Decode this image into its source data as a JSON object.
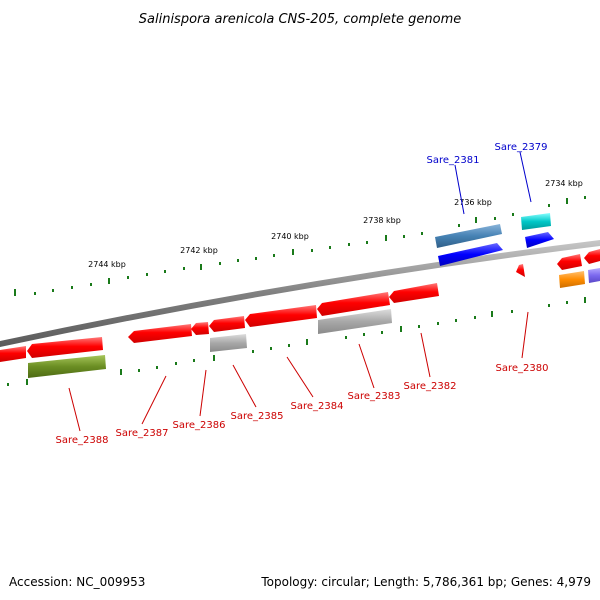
{
  "title": "Salinispora arenicola CNS-205, complete genome",
  "footer": {
    "accession": "Accession: NC_009953",
    "summary": "Topology: circular; Length: 5,786,361 bp; Genes: 4,979"
  },
  "ticks": [
    "2744 kbp",
    "2742 kbp",
    "2740 kbp",
    "2738 kbp",
    "2736 kbp",
    "2734 kbp"
  ],
  "labels": {
    "sare_2381": "Sare_2381",
    "sare_2379": "Sare_2379",
    "sare_2380": "Sare_2380",
    "sare_2382": "Sare_2382",
    "sare_2383": "Sare_2383",
    "sare_2384": "Sare_2384",
    "sare_2385": "Sare_2385",
    "sare_2386": "Sare_2386",
    "sare_2387": "Sare_2387",
    "sare_2388": "Sare_2388"
  },
  "colors": {
    "backbone": "#808080",
    "cds": "#ff0000",
    "ticks": "#1a7a1a",
    "label_blue": "#0000cc",
    "label_red": "#cc0000",
    "steelblue": "#4682b4",
    "blue": "#0000ff",
    "cyan": "#00c8c8",
    "gray": "#a8a8a8",
    "olive": "#6b8e23",
    "orange": "#ff8c00",
    "slateblue": "#7b68ee"
  }
}
